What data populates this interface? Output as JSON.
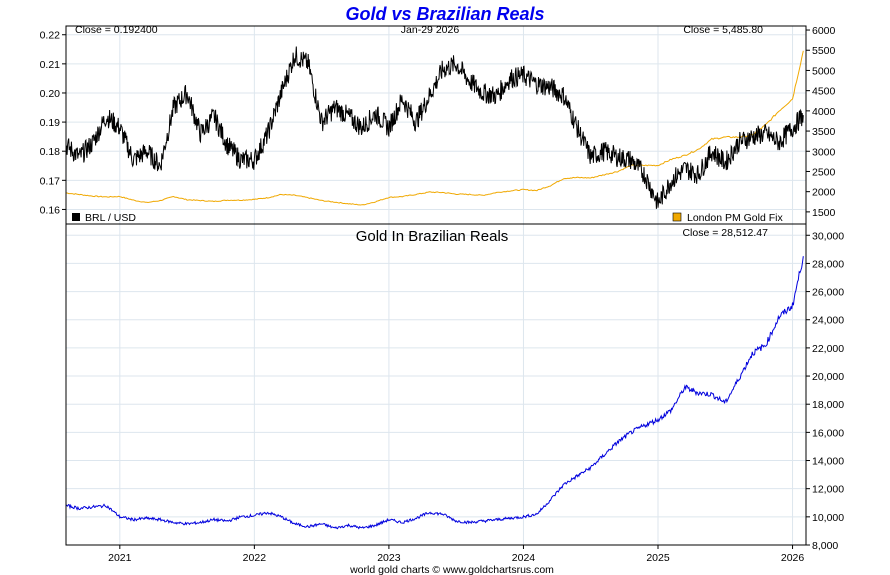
{
  "page": {
    "title": "Gold vs Brazilian Reals",
    "footer": "world gold charts © www.goldchartsrus.com",
    "top_date_label": "Jan-29  2026"
  },
  "colors": {
    "title": "#0000ee",
    "brl": "#000000",
    "gold": "#f0a800",
    "gold_in_brl": "#0000dd",
    "grid": "#dde6ee"
  },
  "chart_data": [
    {
      "type": "line",
      "name": "top-panel",
      "title": "Gold vs Brazilian Reals",
      "x_ticks": [
        "2021",
        "2022",
        "2023",
        "2024",
        "2025",
        "2026"
      ],
      "x_tick_values": [
        2021.0,
        2022.0,
        2023.0,
        2024.0,
        2025.0,
        2026.0
      ],
      "xlim": [
        2020.6,
        2026.1
      ],
      "left_axis": {
        "ylim": [
          0.155,
          0.223
        ],
        "ticks": [
          "0.16",
          "0.17",
          "0.18",
          "0.19",
          "0.20",
          "0.21",
          "0.22"
        ],
        "tick_values": [
          0.16,
          0.17,
          0.18,
          0.19,
          0.2,
          0.21,
          0.22
        ]
      },
      "right_axis": {
        "ylim": [
          1200,
          6100
        ],
        "ticks": [
          "1500",
          "2000",
          "2500",
          "3000",
          "3500",
          "4000",
          "4500",
          "5000",
          "5500",
          "6000"
        ],
        "tick_values": [
          1500,
          2000,
          2500,
          3000,
          3500,
          4000,
          4500,
          5000,
          5500,
          6000
        ]
      },
      "series": [
        {
          "name": "BRL / USD",
          "axis": "left",
          "color": "#000000",
          "close_label": "Close = 0.192400",
          "x": [
            2020.6,
            2020.7,
            2020.8,
            2020.9,
            2021.0,
            2021.1,
            2021.2,
            2021.3,
            2021.4,
            2021.5,
            2021.6,
            2021.7,
            2021.8,
            2021.9,
            2022.0,
            2022.1,
            2022.2,
            2022.3,
            2022.4,
            2022.5,
            2022.6,
            2022.7,
            2022.8,
            2022.9,
            2023.0,
            2023.1,
            2023.2,
            2023.3,
            2023.4,
            2023.5,
            2023.6,
            2023.7,
            2023.8,
            2023.9,
            2024.0,
            2024.1,
            2024.2,
            2024.3,
            2024.4,
            2024.5,
            2024.6,
            2024.7,
            2024.8,
            2024.9,
            2025.0,
            2025.1,
            2025.2,
            2025.3,
            2025.4,
            2025.5,
            2025.6,
            2025.7,
            2025.8,
            2025.9,
            2026.0,
            2026.08
          ],
          "values": [
            0.182,
            0.178,
            0.183,
            0.192,
            0.188,
            0.177,
            0.18,
            0.175,
            0.195,
            0.2,
            0.186,
            0.192,
            0.182,
            0.177,
            0.177,
            0.186,
            0.2,
            0.213,
            0.21,
            0.19,
            0.195,
            0.192,
            0.188,
            0.193,
            0.188,
            0.198,
            0.19,
            0.199,
            0.208,
            0.21,
            0.204,
            0.2,
            0.199,
            0.205,
            0.206,
            0.203,
            0.202,
            0.199,
            0.188,
            0.178,
            0.18,
            0.178,
            0.177,
            0.172,
            0.162,
            0.17,
            0.174,
            0.172,
            0.18,
            0.176,
            0.183,
            0.185,
            0.186,
            0.183,
            0.188,
            0.1924
          ]
        },
        {
          "name": "London PM Gold Fix",
          "axis": "right",
          "color": "#f0a800",
          "close_label": "Close = 5,485.80",
          "x": [
            2020.6,
            2020.7,
            2020.8,
            2020.9,
            2021.0,
            2021.1,
            2021.2,
            2021.3,
            2021.4,
            2021.5,
            2021.6,
            2021.7,
            2021.8,
            2021.9,
            2022.0,
            2022.1,
            2022.2,
            2022.3,
            2022.4,
            2022.5,
            2022.6,
            2022.7,
            2022.8,
            2022.9,
            2023.0,
            2023.1,
            2023.2,
            2023.3,
            2023.4,
            2023.5,
            2023.6,
            2023.7,
            2023.8,
            2023.9,
            2024.0,
            2024.1,
            2024.2,
            2024.3,
            2024.4,
            2024.5,
            2024.6,
            2024.7,
            2024.8,
            2024.9,
            2025.0,
            2025.1,
            2025.2,
            2025.3,
            2025.4,
            2025.5,
            2025.6,
            2025.7,
            2025.8,
            2025.9,
            2026.0,
            2026.08
          ],
          "values": [
            1970,
            1930,
            1890,
            1870,
            1880,
            1790,
            1730,
            1780,
            1880,
            1800,
            1780,
            1760,
            1790,
            1790,
            1810,
            1850,
            1930,
            1910,
            1850,
            1780,
            1740,
            1700,
            1670,
            1750,
            1860,
            1880,
            1930,
            1990,
            1980,
            1940,
            1930,
            1910,
            1980,
            2020,
            2050,
            2030,
            2150,
            2330,
            2350,
            2340,
            2420,
            2500,
            2650,
            2650,
            2650,
            2800,
            2900,
            3050,
            3300,
            3350,
            3350,
            3400,
            3650,
            4000,
            4300,
            5486
          ]
        }
      ],
      "legend": [
        "BRL / USD",
        "London PM Gold Fix"
      ]
    },
    {
      "type": "line",
      "name": "bottom-panel",
      "title": "Gold In Brazilian Reals",
      "xlim": [
        2020.6,
        2026.1
      ],
      "ylim": [
        8000,
        30800
      ],
      "y_ticks": [
        "8,000",
        "10,000",
        "12,000",
        "14,000",
        "16,000",
        "18,000",
        "20,000",
        "22,000",
        "24,000",
        "26,000",
        "28,000",
        "30,000"
      ],
      "y_tick_values": [
        8000,
        10000,
        12000,
        14000,
        16000,
        18000,
        20000,
        22000,
        24000,
        26000,
        28000,
        30000
      ],
      "series": [
        {
          "name": "Gold In Brazilian Reals",
          "color": "#0000dd",
          "close_label": "Close = 28,512.47",
          "x": [
            2020.6,
            2020.7,
            2020.8,
            2020.9,
            2021.0,
            2021.1,
            2021.2,
            2021.3,
            2021.4,
            2021.5,
            2021.6,
            2021.7,
            2021.8,
            2021.9,
            2022.0,
            2022.1,
            2022.2,
            2022.3,
            2022.4,
            2022.5,
            2022.6,
            2022.7,
            2022.8,
            2022.9,
            2023.0,
            2023.1,
            2023.2,
            2023.3,
            2023.4,
            2023.5,
            2023.6,
            2023.7,
            2023.8,
            2023.9,
            2024.0,
            2024.1,
            2024.2,
            2024.3,
            2024.4,
            2024.5,
            2024.6,
            2024.7,
            2024.8,
            2024.9,
            2025.0,
            2025.1,
            2025.2,
            2025.3,
            2025.4,
            2025.5,
            2025.6,
            2025.7,
            2025.8,
            2025.9,
            2026.0,
            2026.08
          ],
          "values": [
            10800,
            10600,
            10700,
            10800,
            10000,
            9800,
            9900,
            9800,
            9600,
            9500,
            9600,
            9800,
            9700,
            10000,
            10100,
            10300,
            10000,
            9500,
            9300,
            9500,
            9200,
            9400,
            9200,
            9400,
            9800,
            9600,
            9900,
            10300,
            10200,
            9700,
            9600,
            9700,
            9800,
            9900,
            10000,
            10200,
            11200,
            12300,
            12900,
            13500,
            14400,
            15300,
            16000,
            16500,
            16900,
            17600,
            19200,
            18800,
            18700,
            18100,
            19800,
            21600,
            22200,
            24200,
            25000,
            28512
          ]
        }
      ]
    }
  ]
}
